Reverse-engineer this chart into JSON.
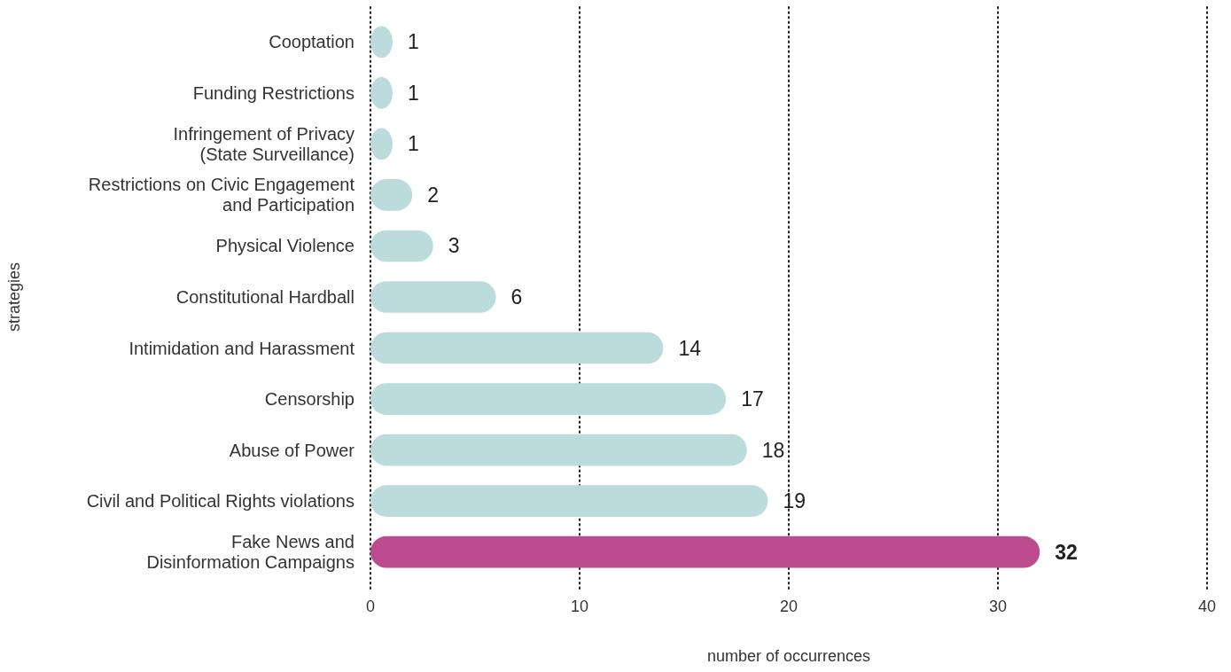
{
  "chart_data": {
    "type": "bar",
    "orientation": "horizontal",
    "xlabel": "number of occurrences",
    "ylabel": "strategies",
    "categories": [
      "Cooptation",
      "Funding Restrictions",
      "Infringement of Privacy\n(State Surveillance)",
      "Restrictions on Civic Engagement\nand Participation",
      "Physical Violence",
      "Constitutional Hardball",
      "Intimidation and Harassment",
      "Censorship",
      "Abuse of Power",
      "Civil and Political Rights violations",
      "Fake News and\nDisinformation Campaigns"
    ],
    "values": [
      1,
      1,
      1,
      2,
      3,
      6,
      14,
      17,
      18,
      19,
      32
    ],
    "colors": [
      "#bcdbdc",
      "#bcdbdc",
      "#bcdbdc",
      "#bcdbdc",
      "#bcdbdc",
      "#bcdbdc",
      "#bcdbdc",
      "#bcdbdc",
      "#bcdbdc",
      "#bcdbdc",
      "#bd4b8f"
    ],
    "xlim": [
      0,
      40
    ],
    "xticks": [
      0,
      10,
      20,
      30,
      40
    ],
    "grid": "x",
    "data_labels": true
  }
}
